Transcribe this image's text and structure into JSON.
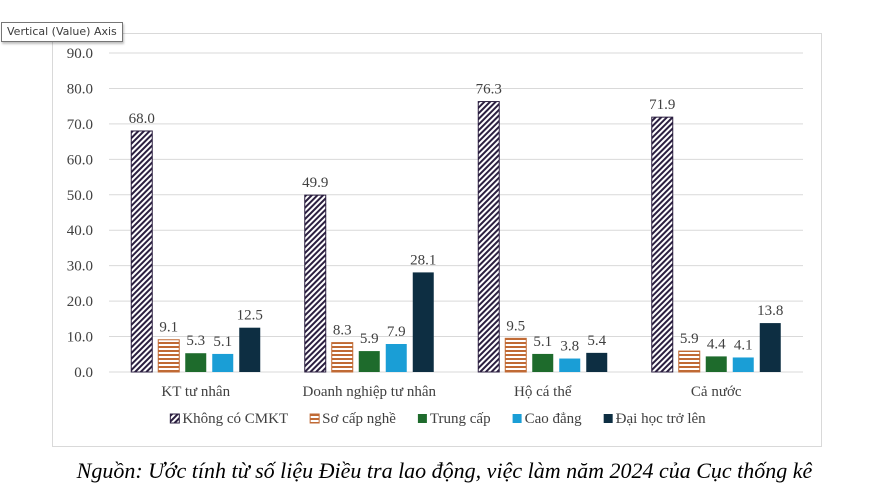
{
  "tooltip": {
    "text": "Vertical (Value) Axis"
  },
  "caption": "Nguồn: Ước tính từ số liệu Điều tra lao động, việc làm năm 2024 của Cục thống kê",
  "chart_data": {
    "type": "bar",
    "title": "",
    "xlabel": "",
    "ylabel": "",
    "ylim": [
      0,
      90
    ],
    "yticks": [
      0,
      10,
      20,
      30,
      40,
      50,
      60,
      70,
      80,
      90
    ],
    "ytick_labels": [
      "0.0",
      "10.0",
      "20.0",
      "30.0",
      "40.0",
      "50.0",
      "60.0",
      "70.0",
      "80.0",
      "90.0"
    ],
    "grid": true,
    "legend_position": "bottom",
    "categories": [
      "KT tư nhân",
      "Doanh nghiệp tư nhân",
      "Hộ cá thể",
      "Cả nước"
    ],
    "series": [
      {
        "name": "Không có CMKT",
        "values": [
          68.0,
          49.9,
          76.3,
          71.9
        ],
        "labels": [
          "68.0",
          "49.9",
          "76.3",
          "71.9"
        ],
        "color": "#2b1f40",
        "pattern": "diagonal-stripes"
      },
      {
        "name": "Sơ cấp nghề",
        "values": [
          9.1,
          8.3,
          9.5,
          5.9
        ],
        "labels": [
          "9.1",
          "8.3",
          "9.5",
          "5.9"
        ],
        "color": "#c06a35",
        "pattern": "horizontal-stripes"
      },
      {
        "name": "Trung cấp",
        "values": [
          5.3,
          5.9,
          5.1,
          4.4
        ],
        "labels": [
          "5.3",
          "5.9",
          "5.1",
          "4.4"
        ],
        "color": "#1e6b2c",
        "pattern": "solid"
      },
      {
        "name": "Cao đẳng",
        "values": [
          5.1,
          7.9,
          3.8,
          4.1
        ],
        "labels": [
          "5.1",
          "7.9",
          "3.8",
          "4.1"
        ],
        "color": "#1a9ed6",
        "pattern": "solid"
      },
      {
        "name": "Đại học trở lên",
        "values": [
          12.5,
          28.1,
          5.4,
          13.8
        ],
        "labels": [
          "12.5",
          "28.1",
          "5.4",
          "13.8"
        ],
        "color": "#0d2e42",
        "pattern": "solid"
      }
    ]
  }
}
